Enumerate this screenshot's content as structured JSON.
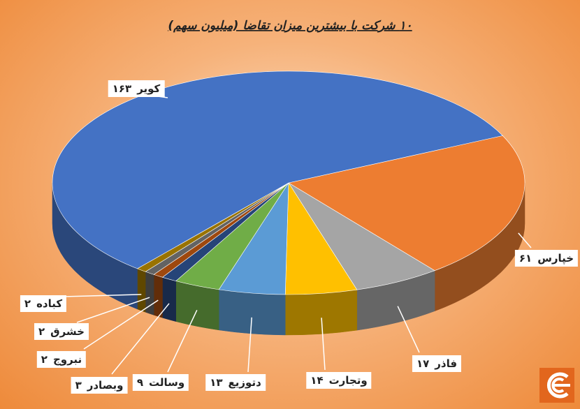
{
  "chart_data": {
    "type": "pie",
    "title": "۱۰ شرکت با بیشترین میزان تقاضا (میلیون سهم)",
    "categories": [
      "خپارس",
      "فاذر",
      "وتجارت",
      "دتوزیع",
      "وسالت",
      "وبصادر",
      "نبروج",
      "خشرق",
      "کباده",
      "کویر"
    ],
    "values": [
      61,
      17,
      14,
      13,
      9,
      3,
      2,
      2,
      2,
      163
    ],
    "value_labels": [
      "۶۱",
      "۱۷",
      "۱۴",
      "۱۳",
      "۹",
      "۳",
      "۲",
      "۲",
      "۲",
      "۱۶۳"
    ],
    "colors": [
      "#ed7d31",
      "#a5a5a5",
      "#ffc000",
      "#5b9bd5",
      "#70ad47",
      "#264478",
      "#9e480e",
      "#636363",
      "#997300",
      "#4472c4"
    ]
  }
}
